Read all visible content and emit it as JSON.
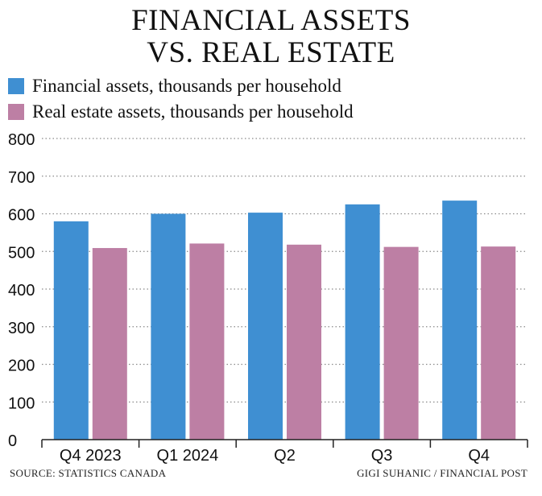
{
  "chart_data": {
    "type": "bar",
    "title": [
      "FINANCIAL ASSETS",
      "VS. REAL ESTATE"
    ],
    "categories": [
      "Q4 2023",
      "Q1 2024",
      "Q2",
      "Q3",
      "Q4"
    ],
    "series": [
      {
        "name": "Financial assets, thousands per household",
        "color": "#3f8fd2",
        "values": [
          580,
          600,
          603,
          625,
          635
        ]
      },
      {
        "name": "Real estate assets, thousands per household",
        "color": "#bd7fa4",
        "values": [
          509,
          521,
          518,
          512,
          513
        ]
      }
    ],
    "yticks": [
      0,
      100,
      200,
      300,
      400,
      500,
      600,
      700,
      800
    ],
    "ylim": [
      0,
      800
    ],
    "grid": true,
    "legend": "top-left",
    "source": "SOURCE: STATISTICS CANADA",
    "credit": "GIGI SUHANIC / FINANCIAL POST"
  }
}
